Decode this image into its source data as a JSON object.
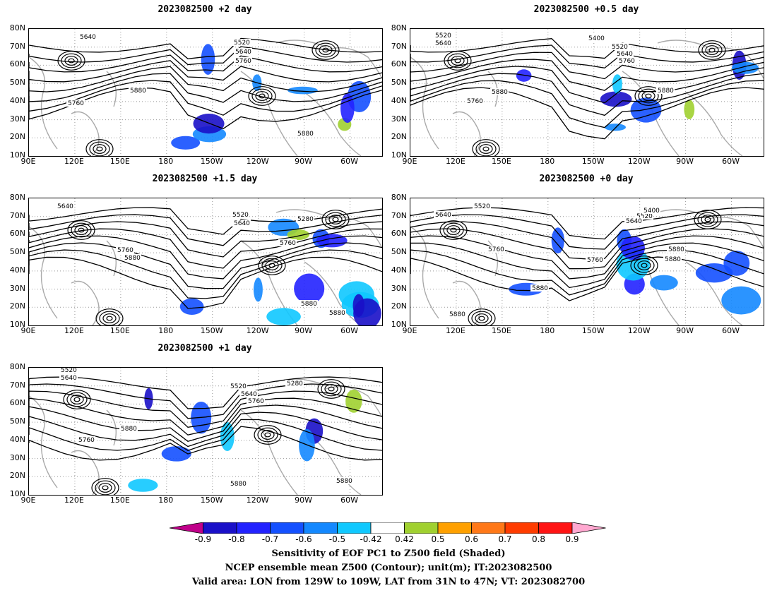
{
  "panels": [
    {
      "title": "2023082500  +2  day",
      "variant": 1,
      "contour_labels": [
        "5640",
        "5520",
        "5640",
        "5760",
        "5880",
        "5760",
        "5880"
      ]
    },
    {
      "title": "2023082500  +0.5  day",
      "variant": 2,
      "contour_labels": [
        "5520",
        "5640",
        "5400",
        "5520",
        "5640",
        "5760",
        "5880",
        "5760",
        "5880"
      ]
    },
    {
      "title": "2023082500  +1.5  day",
      "variant": 3,
      "contour_labels": [
        "5640",
        "5520",
        "5640",
        "5280",
        "5760",
        "5760",
        "5880",
        "5880",
        "5880"
      ]
    },
    {
      "title": "2023082500  +0  day",
      "variant": 4,
      "contour_labels": [
        "5640",
        "5520",
        "5520",
        "5400",
        "5640",
        "5760",
        "5880",
        "5760",
        "5880",
        "5880",
        "5880"
      ]
    },
    {
      "title": "2023082500  +1  day",
      "variant": 5,
      "contour_labels": [
        "5520",
        "5640",
        "5520",
        "5640",
        "5760",
        "5280",
        "5880",
        "5760",
        "5880",
        "5880"
      ]
    }
  ],
  "axes": {
    "lat_labels": [
      "80N",
      "70N",
      "60N",
      "50N",
      "40N",
      "30N",
      "20N",
      "10N"
    ],
    "lon_labels": [
      "90E",
      "120E",
      "150E",
      "180",
      "150W",
      "120W",
      "90W",
      "60W"
    ]
  },
  "colorbar": {
    "labels": [
      "-0.9",
      "-0.8",
      "-0.7",
      "-0.6",
      "-0.5",
      "-0.42",
      "0.42",
      "0.5",
      "0.6",
      "0.7",
      "0.8",
      "0.9"
    ],
    "colors": [
      "#c0008a",
      "#1a10c8",
      "#2222ff",
      "#1450ff",
      "#1488ff",
      "#10c8ff",
      "#ffffff",
      "#a0d030",
      "#ffa000",
      "#ff7818",
      "#ff3c00",
      "#ff1414",
      "#ffa8d0"
    ]
  },
  "captions": {
    "line1": "Sensitivity of EOF PC1 to Z500 field (Shaded)",
    "line2": "NCEP ensemble mean Z500 (Contour); unit(m); IT:2023082500",
    "line3": "Valid area: LON from 129W to 109W, LAT from 31N to 47N; VT: 2023082700"
  }
}
